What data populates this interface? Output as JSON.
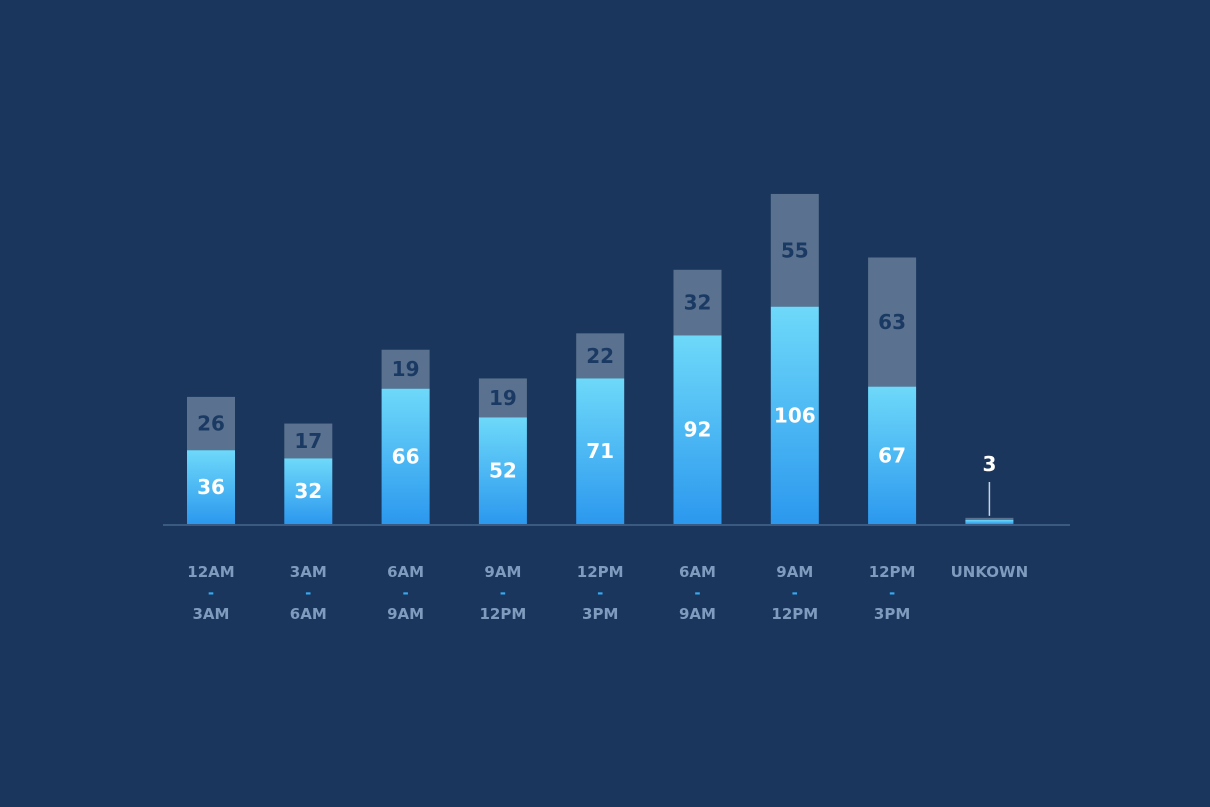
{
  "chart_data": {
    "type": "bar",
    "stacked": true,
    "categories": [
      [
        "12AM",
        "-",
        "3AM"
      ],
      [
        "3AM",
        "-",
        "6AM"
      ],
      [
        "6AM",
        "-",
        "9AM"
      ],
      [
        "9AM",
        "-",
        "12PM"
      ],
      [
        "12PM",
        "-",
        "3PM"
      ],
      [
        "6AM",
        "-",
        "9AM"
      ],
      [
        "9AM",
        "-",
        "12PM"
      ],
      [
        "12PM",
        "-",
        "3PM"
      ],
      [
        "UNKOWN"
      ]
    ],
    "series": [
      {
        "values": [
          36,
          32,
          66,
          52,
          71,
          92,
          106,
          67,
          2
        ],
        "labels": [
          "36",
          "32",
          "66",
          "52",
          "71",
          "92",
          "106",
          "67",
          ""
        ]
      },
      {
        "values": [
          26,
          17,
          19,
          19,
          22,
          32,
          55,
          63,
          1
        ],
        "labels": [
          "26",
          "17",
          "19",
          "19",
          "22",
          "32",
          "55",
          "63",
          ""
        ]
      }
    ],
    "totals_labels": [
      "",
      "",
      "",
      "",
      "",
      "",
      "",
      "",
      "3"
    ],
    "ylim": [
      0,
      170
    ],
    "grid": false,
    "legend": "none",
    "title": "",
    "xlabel": "",
    "ylabel": ""
  },
  "colors": {
    "background": "#1a365d",
    "bar_bottom_light": "#6ed9f9",
    "bar_bottom_dark": "#2c98ee",
    "bar_top": "#5a7290",
    "baseline": "#3b5a82",
    "tick_text": "#7f9bbd",
    "tick_dash": "#37a9f2"
  }
}
